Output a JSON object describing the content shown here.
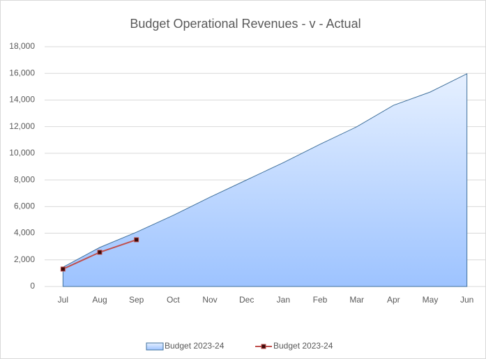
{
  "chart_data": {
    "type": "area_line",
    "title": "Budget Operational Revenues - v - Actual",
    "categories": [
      "Jul",
      "Aug",
      "Sep",
      "Oct",
      "Nov",
      "Dec",
      "Jan",
      "Feb",
      "Mar",
      "Apr",
      "May",
      "Jun"
    ],
    "series": [
      {
        "name": "Budget 2023-24",
        "type": "area",
        "color": "#9dc3ff",
        "values": [
          1450,
          2930,
          4080,
          5340,
          6700,
          8000,
          9300,
          10680,
          11990,
          13600,
          14600,
          15970
        ]
      },
      {
        "name": "Budget 2023-24",
        "type": "line",
        "color": "#c0504d",
        "values": [
          1310,
          2570,
          3510,
          null,
          null,
          null,
          null,
          null,
          null,
          null,
          null,
          null
        ]
      }
    ],
    "ylim": [
      0,
      18000
    ],
    "yticks": [
      0,
      {
        "value": 2000,
        "label": "2,000"
      },
      {
        "value": 4000,
        "label": "4,000"
      },
      {
        "value": 6000,
        "label": "6,000"
      },
      {
        "value": 8000,
        "label": "8,000"
      },
      {
        "value": 10000,
        "label": "10,000"
      },
      {
        "value": 12000,
        "label": "12,000"
      },
      {
        "value": 14000,
        "label": "14,000"
      },
      {
        "value": 16000,
        "label": "16,000"
      },
      {
        "value": 18000,
        "label": "18,000"
      }
    ],
    "grid": true,
    "legend": "bottom"
  }
}
